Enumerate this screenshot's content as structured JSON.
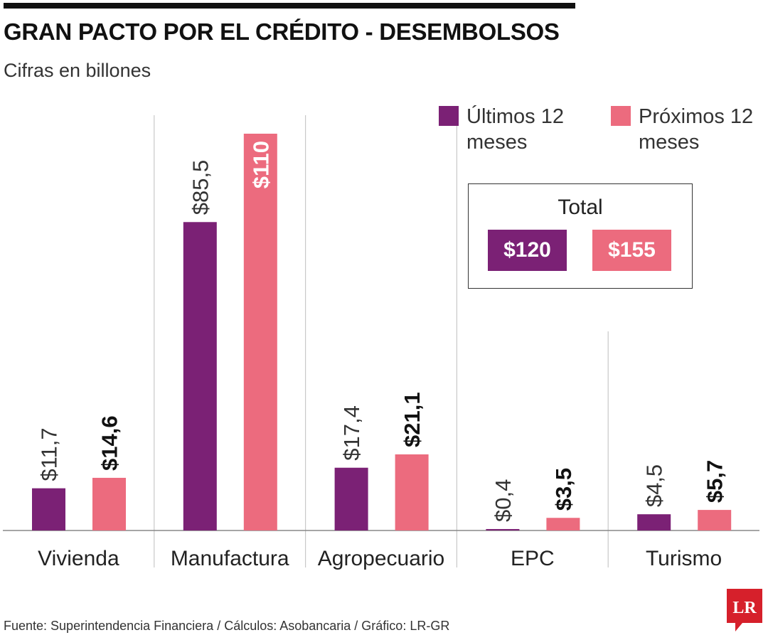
{
  "header": {
    "title": "GRAN PACTO POR EL CRÉDITO - DESEMBOLSOS",
    "subtitle": "Cifras en billones"
  },
  "legend": {
    "series": [
      {
        "label": "Últimos 12 meses",
        "color": "#7B2175"
      },
      {
        "label": "Próximos 12 meses",
        "color": "#EC6B7E"
      }
    ]
  },
  "totals": {
    "label": "Total",
    "values": [
      "$120",
      "$155"
    ]
  },
  "chart_data": {
    "type": "bar",
    "categories": [
      "Vivienda",
      "Manufactura",
      "Agropecuario",
      "EPC",
      "Turismo"
    ],
    "series": [
      {
        "name": "Últimos 12 meses",
        "color": "#7B2175",
        "values": [
          11.7,
          85.5,
          17.4,
          0.4,
          4.5
        ],
        "labels": [
          "$11,7",
          "$85,5",
          "$17,4",
          "$0,4",
          "$4,5"
        ]
      },
      {
        "name": "Próximos 12 meses",
        "color": "#EC6B7E",
        "values": [
          14.6,
          110,
          21.1,
          3.5,
          5.7
        ],
        "labels": [
          "$14,6",
          "$110",
          "$21,1",
          "$3,5",
          "$5,7"
        ]
      }
    ],
    "ylim": [
      0,
      110
    ],
    "grid": false,
    "legend_position": "top-right"
  },
  "footer": {
    "source": "Fuente: Superintendencia Financiera / Cálculos: Asobancaria / Gráfico: LR-GR",
    "logo_text": "LR"
  }
}
